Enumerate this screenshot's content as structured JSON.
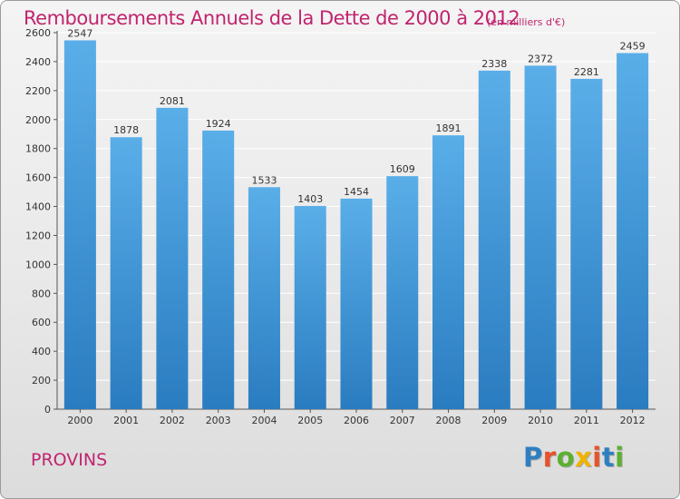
{
  "header": {
    "title": "Remboursements Annuels de la Dette de 2000 à 2012",
    "subtitle": "(en milliers d'€)"
  },
  "footer": {
    "city": "PROVINS",
    "logo": "Proxiti",
    "logo_colors": [
      "#2e7fc0",
      "#e8532a",
      "#5bb030",
      "#f0b400",
      "#e8532a",
      "#2e7fc0",
      "#5bb030"
    ]
  },
  "colors": {
    "bar_light": "#5aaee8",
    "bar_dark": "#2a7cc0",
    "title": "#c0246e",
    "grid": "#ffffff"
  },
  "chart_data": {
    "type": "bar",
    "title": "Remboursements Annuels de la Dette de 2000 à 2012",
    "subtitle": "(en milliers d'€)",
    "categories": [
      "2000",
      "2001",
      "2002",
      "2003",
      "2004",
      "2005",
      "2006",
      "2007",
      "2008",
      "2009",
      "2010",
      "2011",
      "2012"
    ],
    "values": [
      2547,
      1878,
      2081,
      1924,
      1533,
      1403,
      1454,
      1609,
      1891,
      2338,
      2372,
      2281,
      2459
    ],
    "ylim": [
      0,
      2600
    ],
    "yticks": [
      0,
      200,
      400,
      600,
      800,
      1000,
      1200,
      1400,
      1600,
      1800,
      2000,
      2200,
      2400,
      2600
    ],
    "grid": true,
    "legend": "none"
  }
}
